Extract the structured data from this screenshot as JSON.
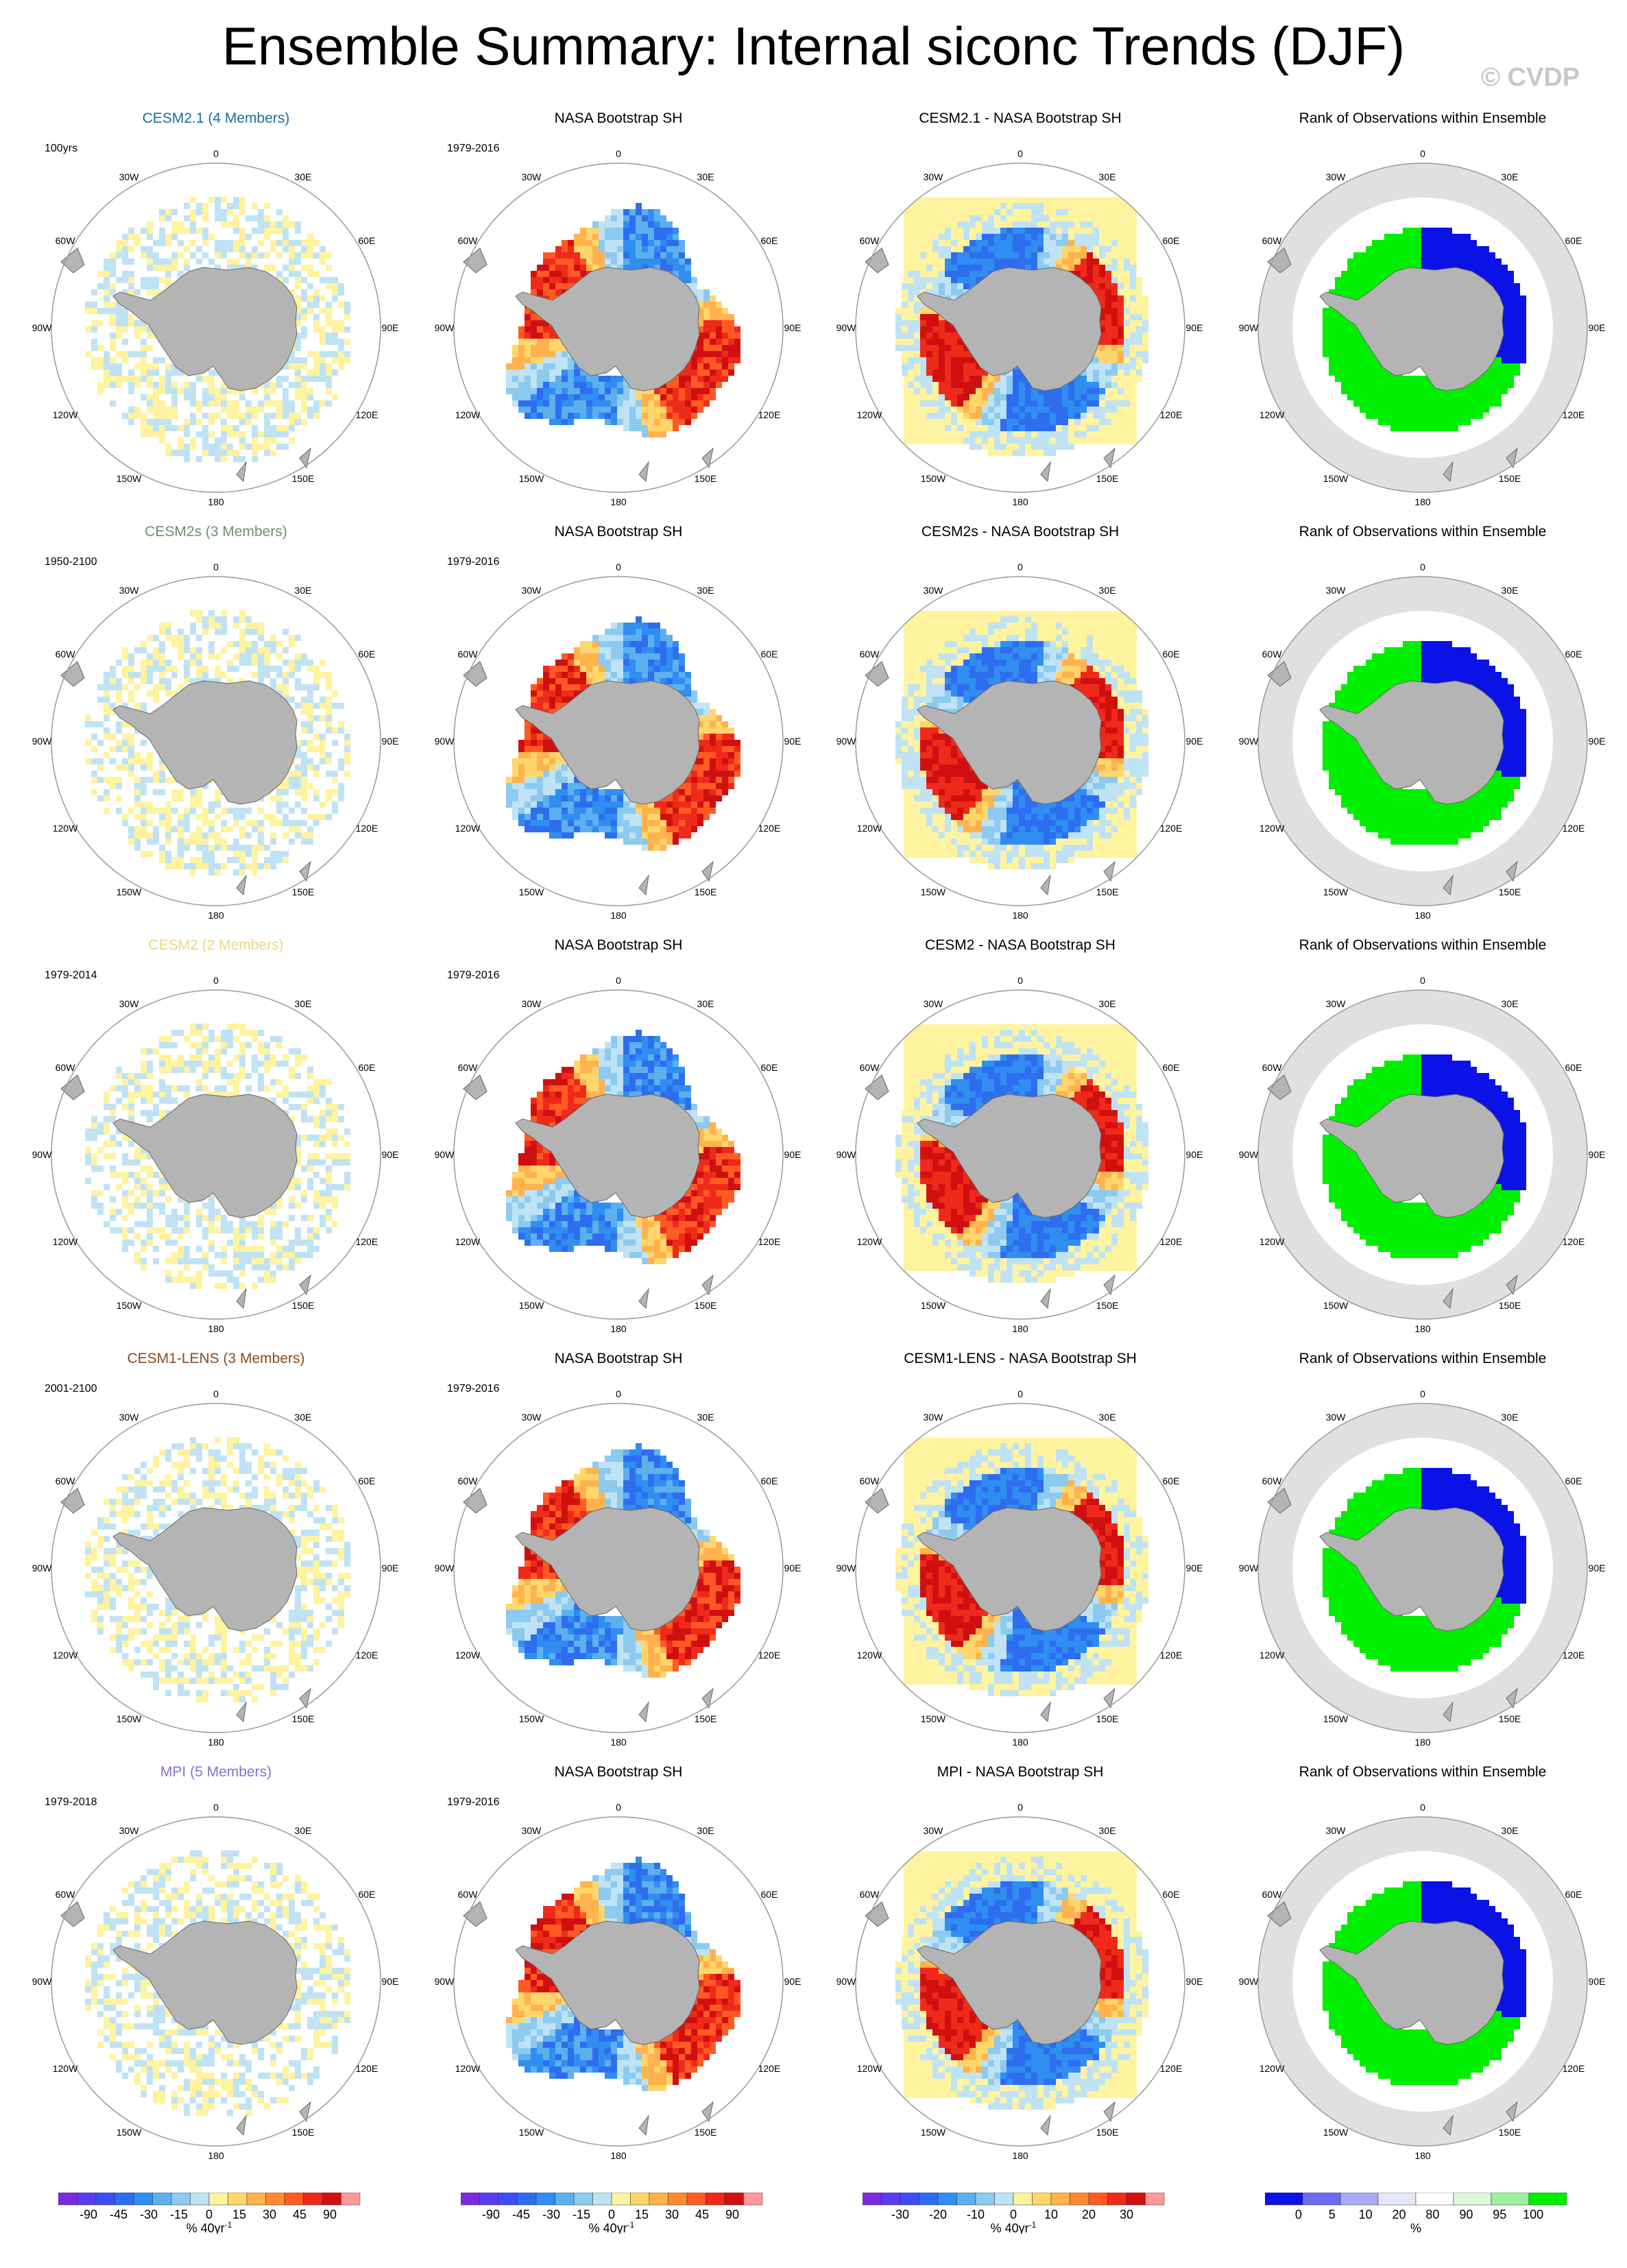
{
  "figure": {
    "title": "Ensemble Summary: Internal siconc Trends (DJF)",
    "watermark": "© CVDP"
  },
  "colors": {
    "land": "#b4b4b4",
    "cesm21_title": "#1b6ea0",
    "cesm2s_title": "#6f8f6f",
    "cesm2_title": "#e8d787",
    "cesm1_lens_title": "#8a4a1a",
    "mpi_title": "#8a6fd6"
  },
  "map_labels": {
    "lon": [
      "0",
      "30E",
      "60E",
      "90E",
      "120E",
      "150E",
      "180",
      "150W",
      "120W",
      "90W",
      "60W",
      "30W"
    ]
  },
  "rows": [
    {
      "model": "CESM2.1 (4 Members)",
      "model_color_key": "cesm21_title",
      "model_period": "100yrs",
      "obs_title": "NASA Bootstrap SH",
      "obs_period": "1979-2016",
      "diff_title": "CESM2.1 - NASA Bootstrap SH",
      "rank_title": "Rank of Observations within Ensemble"
    },
    {
      "model": "CESM2s (3 Members)",
      "model_color_key": "cesm2s_title",
      "model_period": "1950-2100",
      "obs_title": "NASA Bootstrap SH",
      "obs_period": "1979-2016",
      "diff_title": "CESM2s - NASA Bootstrap SH",
      "rank_title": "Rank of Observations within Ensemble"
    },
    {
      "model": "CESM2 (2 Members)",
      "model_color_key": "cesm2_title",
      "model_period": "1979-2014",
      "obs_title": "NASA Bootstrap SH",
      "obs_period": "1979-2016",
      "diff_title": "CESM2 - NASA Bootstrap SH",
      "rank_title": "Rank of Observations within Ensemble"
    },
    {
      "model": "CESM1-LENS (3 Members)",
      "model_color_key": "cesm1_lens_title",
      "model_period": "2001-2100",
      "obs_title": "NASA Bootstrap SH",
      "obs_period": "1979-2016",
      "diff_title": "CESM1-LENS - NASA Bootstrap SH",
      "rank_title": "Rank of Observations within Ensemble"
    },
    {
      "model": "MPI (5 Members)",
      "model_color_key": "mpi_title",
      "model_period": "1979-2018",
      "obs_title": "NASA Bootstrap SH",
      "obs_period": "1979-2016",
      "diff_title": "MPI - NASA Bootstrap SH",
      "rank_title": "Rank of Observations within Ensemble"
    }
  ],
  "chart_data": [
    {
      "type": "heatmap",
      "id": "trend_colorbar",
      "label": "% 40yr",
      "label_superscript": "-1",
      "ticks": [
        "-90",
        "-45",
        "-30",
        "-15",
        "0",
        "15",
        "30",
        "45",
        "90"
      ],
      "colors": [
        "#7b2be0",
        "#5a3cf0",
        "#3d4ff2",
        "#2e6df0",
        "#2f8ef0",
        "#5cb0ee",
        "#8ccaf0",
        "#bfe3f4",
        "#fff3a0",
        "#ffd66b",
        "#ffb24d",
        "#ff8a33",
        "#ff5a24",
        "#f02a1a",
        "#d01010",
        "#ff9a9a"
      ]
    },
    {
      "type": "heatmap",
      "id": "diff_colorbar",
      "label": "% 40yr",
      "label_superscript": "-1",
      "ticks": [
        "-30",
        "-20",
        "-10",
        "0",
        "10",
        "20",
        "30"
      ],
      "colors": [
        "#7b2be0",
        "#5a3cf0",
        "#3d4ff2",
        "#2e6df0",
        "#2f8ef0",
        "#5cb0ee",
        "#8ccaf0",
        "#bfe3f4",
        "#fff3a0",
        "#ffd66b",
        "#ffb24d",
        "#ff8a33",
        "#ff5a24",
        "#f02a1a",
        "#d01010",
        "#ff9a9a"
      ]
    },
    {
      "type": "heatmap",
      "id": "rank_colorbar",
      "label": "%",
      "ticks": [
        "0",
        "5",
        "10",
        "20",
        "80",
        "90",
        "95",
        "100"
      ],
      "colors": [
        "#0a12e6",
        "#6c6cf0",
        "#a9a9f5",
        "#e6e6fa",
        "#ffffff",
        "#dcf7dc",
        "#9ef09e",
        "#00ef00"
      ]
    }
  ]
}
